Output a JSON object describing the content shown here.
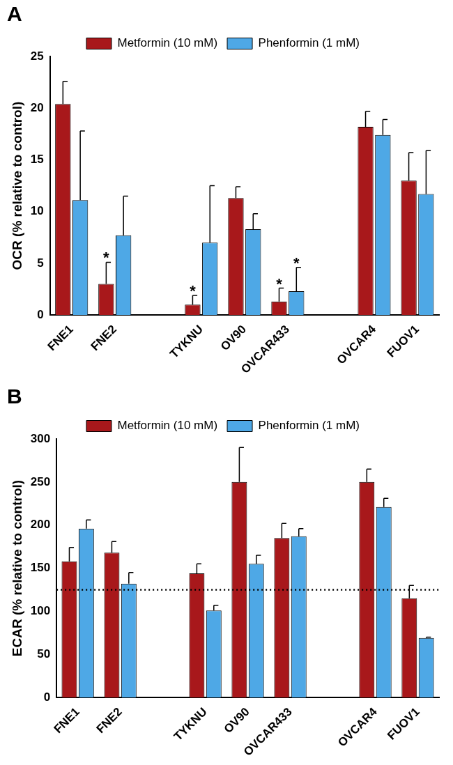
{
  "chart_data": [
    {
      "type": "bar",
      "title": "A",
      "y_label": "OCR (% relative to control)",
      "categories": [
        "FNE1",
        "FNE2",
        null,
        "TYKNU",
        "OV90",
        "OVCAR433",
        null,
        "OVCAR4",
        "FUOV1"
      ],
      "series": [
        {
          "name": "Metformin (10 mM)",
          "color": "#a8181b",
          "values": [
            20.4,
            3.0,
            null,
            1.0,
            11.3,
            1.3,
            null,
            18.2,
            13.0
          ],
          "errors": [
            2.2,
            2.1,
            null,
            0.9,
            1.1,
            1.3,
            null,
            1.5,
            2.7
          ],
          "significance": [
            null,
            "*",
            null,
            "*",
            null,
            "*",
            null,
            null,
            null
          ]
        },
        {
          "name": "Phenformin (1 mM)",
          "color": "#4ea8e6",
          "values": [
            11.1,
            7.7,
            null,
            7.0,
            8.3,
            2.3,
            null,
            17.4,
            11.7
          ],
          "errors": [
            6.7,
            3.8,
            null,
            5.5,
            1.5,
            2.3,
            null,
            1.5,
            4.2
          ],
          "significance": [
            null,
            null,
            null,
            null,
            null,
            "*",
            null,
            null,
            null
          ]
        }
      ],
      "ylim": [
        0,
        25
      ],
      "yticks": [
        0,
        5,
        10,
        15,
        20,
        25
      ],
      "grid": false,
      "legend": "top"
    },
    {
      "type": "bar",
      "title": "B",
      "y_label": "ECAR (% relative to control)",
      "categories": [
        "FNE1",
        "FNE2",
        null,
        "TYKNU",
        "OV90",
        "OVCAR433",
        null,
        "OVCAR4",
        "FUOV1"
      ],
      "series": [
        {
          "name": "Metformin (10 mM)",
          "color": "#a8181b",
          "values": [
            158,
            168,
            null,
            144,
            250,
            185,
            null,
            250,
            115
          ],
          "errors": [
            16,
            13,
            null,
            11,
            40,
            17,
            null,
            15,
            15
          ]
        },
        {
          "name": "Phenformin (1 mM)",
          "color": "#4ea8e6",
          "values": [
            196,
            132,
            null,
            101,
            155,
            187,
            null,
            221,
            69
          ],
          "errors": [
            10,
            13,
            null,
            6,
            10,
            9,
            null,
            10,
            1
          ]
        }
      ],
      "ylim": [
        0,
        300
      ],
      "yticks": [
        0,
        50,
        100,
        150,
        200,
        250,
        300
      ],
      "grid": false,
      "legend": "top",
      "reference_line": 125
    }
  ]
}
